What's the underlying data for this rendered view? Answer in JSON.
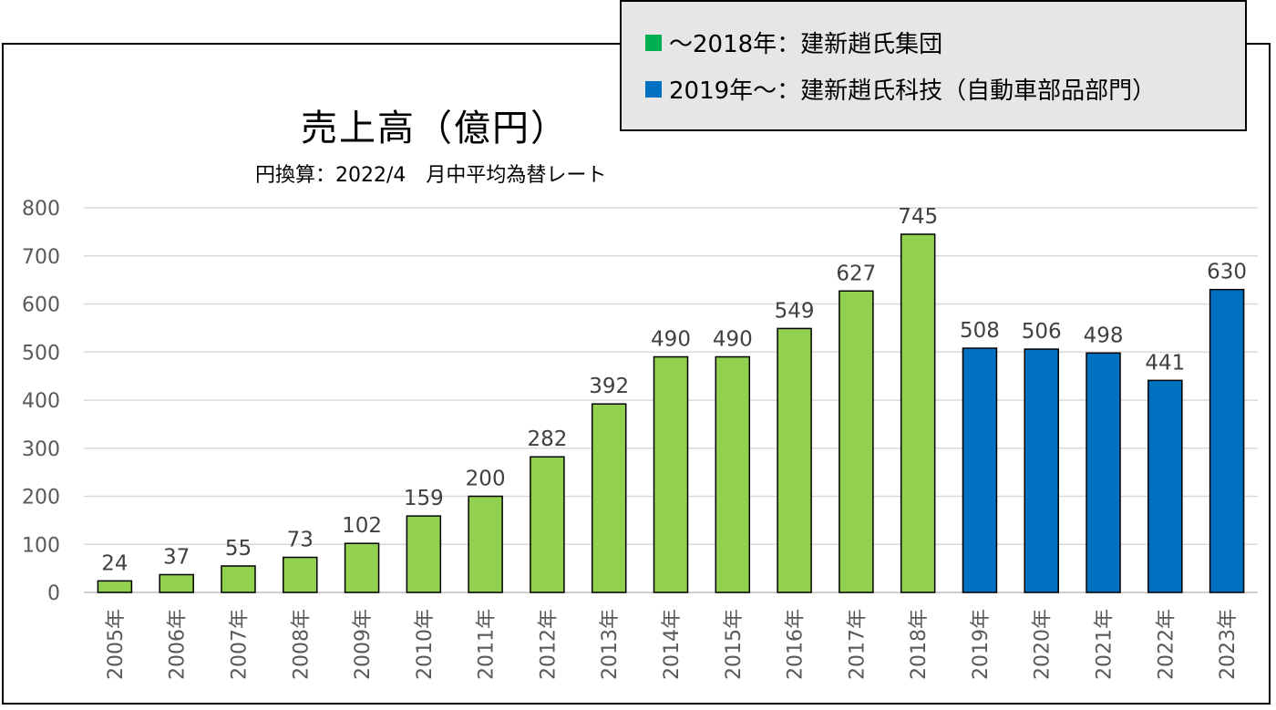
{
  "chart_data": {
    "type": "bar",
    "title": "売上高（億円）",
    "subtitle": "円換算：2022/4　月中平均為替レート",
    "categories": [
      "2005年",
      "2006年",
      "2007年",
      "2008年",
      "2009年",
      "2010年",
      "2011年",
      "2012年",
      "2013年",
      "2014年",
      "2015年",
      "2016年",
      "2017年",
      "2018年",
      "2019年",
      "2020年",
      "2021年",
      "2022年",
      "2023年"
    ],
    "values": [
      24,
      37,
      55,
      73,
      102,
      159,
      200,
      282,
      392,
      490,
      490,
      549,
      627,
      745,
      508,
      506,
      498,
      441,
      630
    ],
    "series": [
      {
        "name": "～2018年：建新趙氏集団",
        "color": "#92d050",
        "range": [
          "2005年",
          "2018年"
        ]
      },
      {
        "name": "2019年～：建新趙氏科技（自動車部品部門）",
        "color": "#0070c0",
        "range": [
          "2019年",
          "2023年"
        ]
      }
    ],
    "ylim": [
      0,
      800
    ],
    "yticks": [
      0,
      100,
      200,
      300,
      400,
      500,
      600,
      700,
      800
    ],
    "grid": true,
    "legend_position": "top-right",
    "data_labels": true
  }
}
